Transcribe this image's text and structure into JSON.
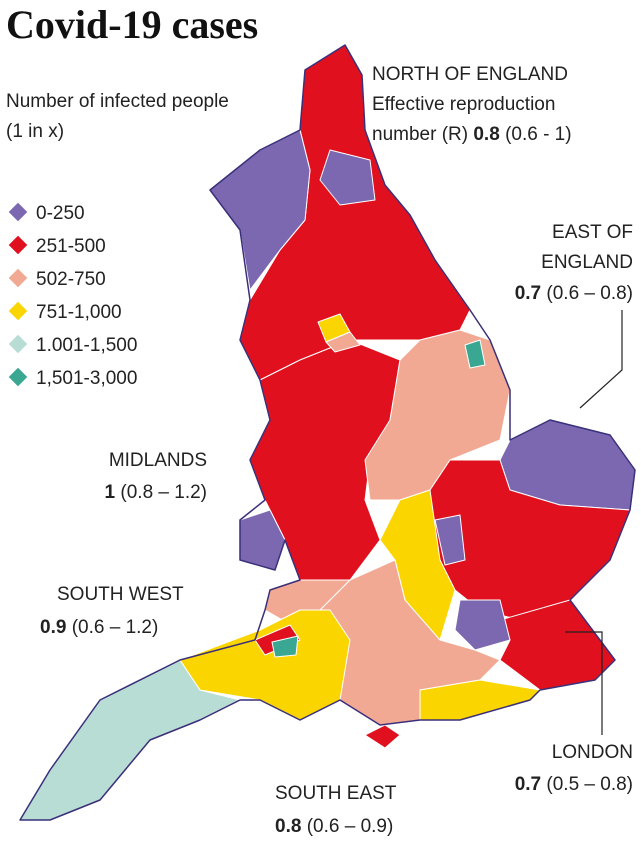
{
  "title": "Covid-19 cases",
  "subtitle": [
    "Number of infected people",
    "(1 in x)"
  ],
  "legend": [
    {
      "label": "0-250",
      "color": "#7b68b0"
    },
    {
      "label": "251-500",
      "color": "#e0101e"
    },
    {
      "label": "502-750",
      "color": "#f2a993"
    },
    {
      "label": "751-1,000",
      "color": "#fbd500"
    },
    {
      "label": "1.001-1,500",
      "color": "#b7ddd5"
    },
    {
      "label": "1,501-3,000",
      "color": "#3aa793"
    }
  ],
  "annotations": [
    {
      "lines": [
        "NORTH OF ENGLAND",
        "Effective reproduction",
        "number (R)"
      ],
      "r": 0.8,
      "range": "(0.6 - 1)"
    },
    {
      "lines": [
        "EAST OF",
        "ENGLAND"
      ],
      "r": 0.7,
      "range": "(0.6 – 0.8)"
    },
    {
      "lines": [
        "MIDLANDS"
      ],
      "r": 1,
      "range": "(0.8 – 1.2)"
    },
    {
      "lines": [
        "SOUTH WEST"
      ],
      "r": 0.9,
      "range": "(0.6 – 1.2)"
    },
    {
      "lines": [
        "LONDON"
      ],
      "r": 0.7,
      "range": "(0.5 – 0.8)"
    },
    {
      "lines": [
        "SOUTH EAST"
      ],
      "r": 0.8,
      "range": "(0.6 – 0.9)"
    }
  ]
}
